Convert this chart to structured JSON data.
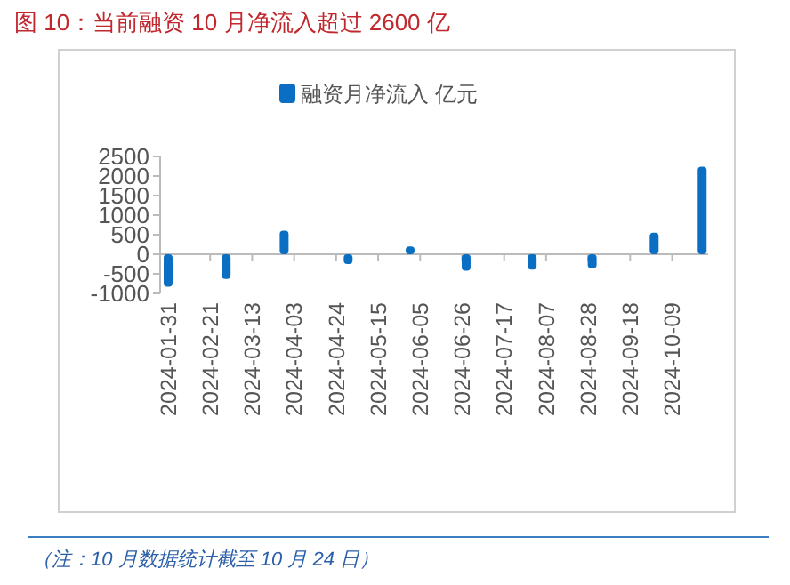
{
  "chart_data": {
    "type": "bar",
    "title": "图 10：当前融资 10 月净流入超过 2600 亿",
    "x": [
      "2024-01-31",
      "2024-02-29",
      "2024-03-29",
      "2024-04-30",
      "2024-05-31",
      "2024-06-28",
      "2024-07-31",
      "2024-08-30",
      "2024-09-30",
      "2024-10-24"
    ],
    "series": [
      {
        "name": "融资月净流入 亿元",
        "color": "#0a6fc2",
        "values": [
          -830,
          -630,
          600,
          -250,
          200,
          -420,
          -390,
          -360,
          550,
          2240
        ]
      }
    ],
    "xlim": [
      "2024-01-27",
      "2024-10-27"
    ],
    "xticks": [
      "2024-01-31",
      "2024-02-21",
      "2024-03-13",
      "2024-04-03",
      "2024-04-24",
      "2024-05-15",
      "2024-06-05",
      "2024-06-26",
      "2024-07-17",
      "2024-08-07",
      "2024-08-28",
      "2024-09-18",
      "2024-10-09"
    ],
    "ylim": [
      -1000,
      2500
    ],
    "yticks": [
      -1000,
      -500,
      0,
      500,
      1000,
      1500,
      2000,
      2500
    ],
    "legend": "top",
    "grid": false,
    "annotations": [
      "（注：10 月数据统计截至 10 月 24 日）"
    ]
  }
}
